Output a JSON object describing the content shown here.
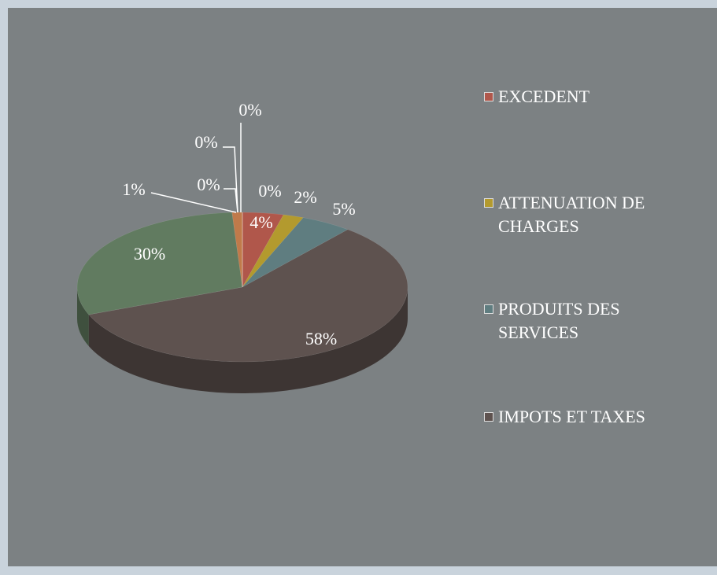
{
  "chart_data": {
    "type": "pie",
    "categories": [
      "EXCEDENT",
      "ATTENUATION DE CHARGES",
      "PRODUITS DES SERVICES",
      "IMPOTS ET TAXES",
      null,
      null,
      null,
      null,
      null,
      null
    ],
    "values": [
      4,
      2,
      5,
      58,
      30,
      1,
      0,
      0,
      0,
      0
    ],
    "value_labels": [
      "4%",
      "2%",
      "5%",
      "58%",
      "30%",
      "1%",
      "0%",
      "0%",
      "0%",
      "0%"
    ],
    "colors": [
      "#b0574b",
      "#b39a2e",
      "#5f7d80",
      "#5e524f",
      "#617b60",
      "#c07a4a",
      "#8a6aa0",
      "#5a8fb0",
      "#a0a040",
      "#b06060"
    ],
    "legend": "right"
  }
}
